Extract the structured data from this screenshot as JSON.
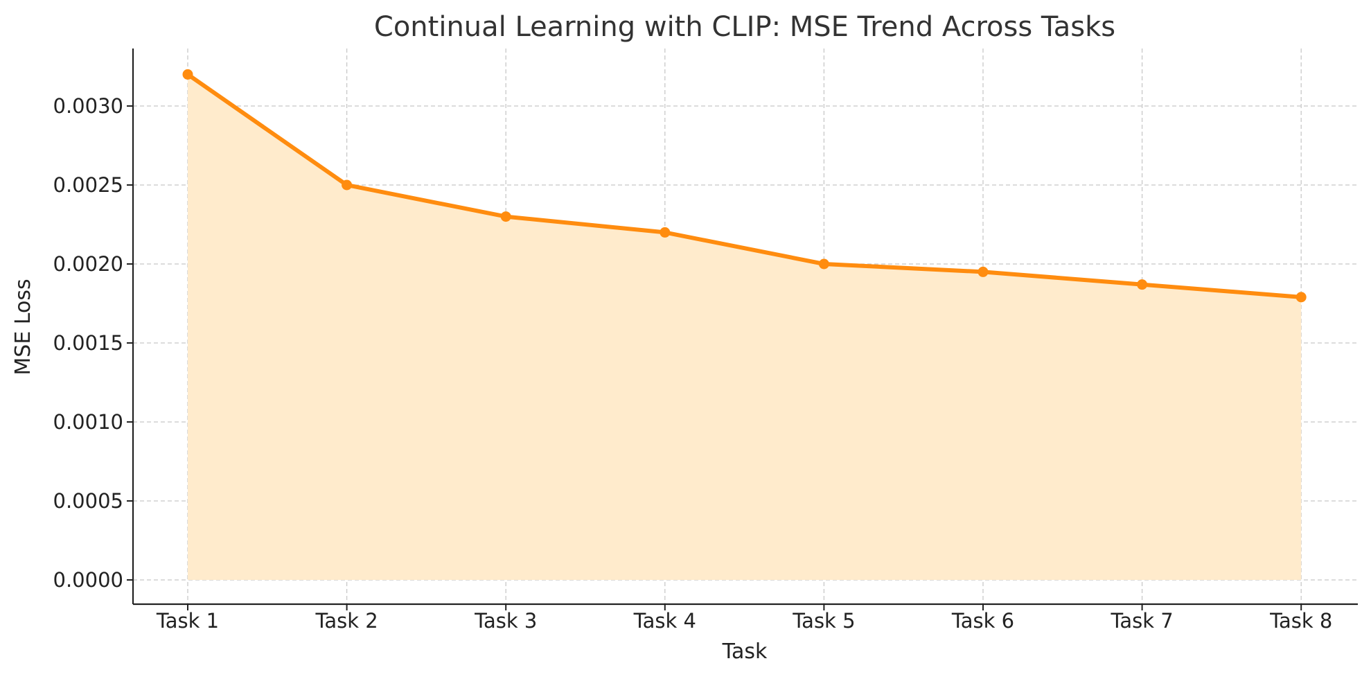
{
  "chart_data": {
    "type": "area",
    "title": "Continual Learning with CLIP: MSE Trend Across Tasks",
    "xlabel": "Task",
    "ylabel": "MSE Loss",
    "categories": [
      "Task 1",
      "Task 2",
      "Task 3",
      "Task 4",
      "Task 5",
      "Task 6",
      "Task 7",
      "Task 8"
    ],
    "values": [
      0.0032,
      0.0025,
      0.0023,
      0.0022,
      0.002,
      0.00195,
      0.00187,
      0.00179
    ],
    "yticks": [
      "0.0000",
      "0.0005",
      "0.0010",
      "0.0015",
      "0.0020",
      "0.0025",
      "0.0030"
    ],
    "ylim": [
      -0.00015,
      0.00335
    ],
    "grid": true,
    "line_color": "#FF8C0F",
    "fill_color": "#FFEBCC"
  }
}
